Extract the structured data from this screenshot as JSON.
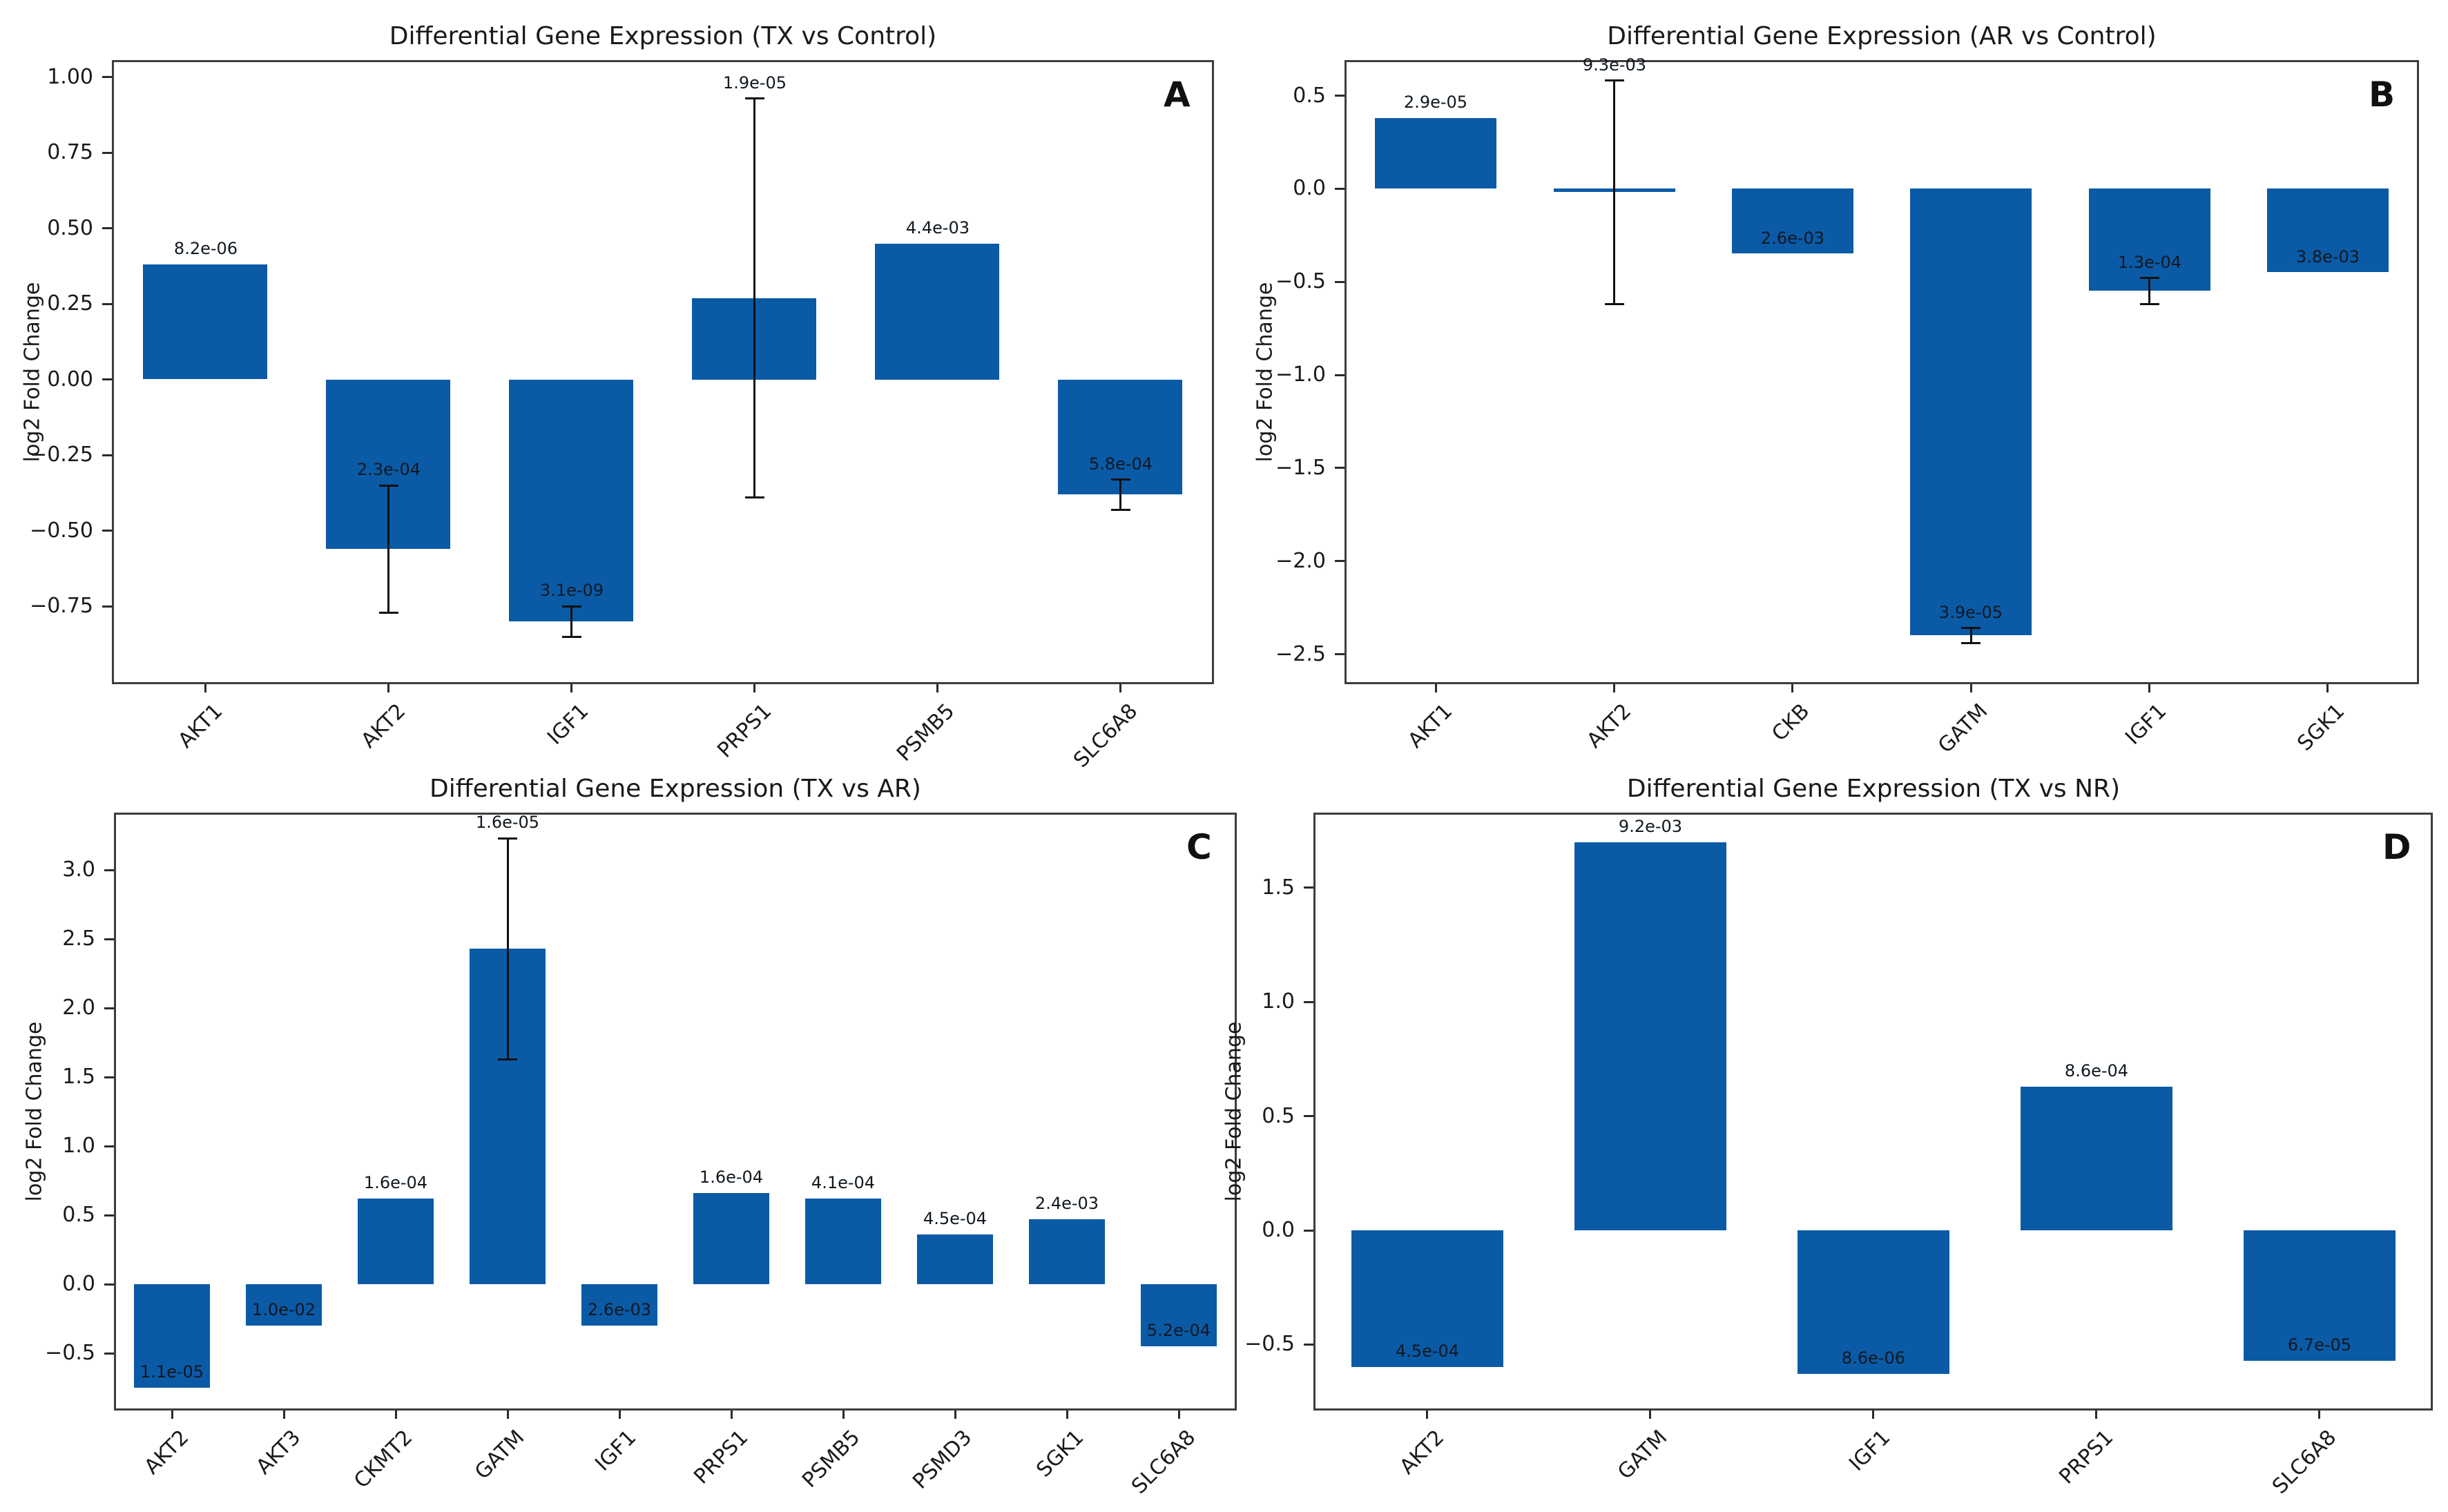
{
  "figure_title": "Differential Gene Expression panels",
  "colors": {
    "bar": "#0b5aa6",
    "spine": "#3d3d3d",
    "text": "#1a1a1a",
    "annotation": "#101820",
    "background": "#ffffff"
  },
  "chart_data": [
    {
      "type": "bar",
      "panel_label": "A",
      "title": "Differential Gene Expression (TX vs Control)",
      "xlabel": "",
      "ylabel": "log2 Fold Change",
      "ylim": [
        -1.0,
        1.05
      ],
      "yticks": [
        1.0,
        0.75,
        0.5,
        0.25,
        0.0,
        -0.25,
        -0.5,
        -0.75
      ],
      "grid": false,
      "legend": null,
      "categories": [
        "AKT1",
        "AKT2",
        "IGF1",
        "PRPS1",
        "PSMB5",
        "SLC6A8"
      ],
      "values": [
        0.38,
        -0.56,
        -0.8,
        0.27,
        0.45,
        -0.38
      ],
      "errors": [
        0,
        0.21,
        0.05,
        0.66,
        0,
        0.05
      ],
      "pvalue_labels": [
        "8.2e-06",
        "2.3e-04",
        "3.1e-09",
        "1.9e-05",
        "4.4e-03",
        "5.8e-04"
      ]
    },
    {
      "type": "bar",
      "panel_label": "B",
      "title": "Differential Gene Expression (AR vs Control)",
      "xlabel": "",
      "ylabel": "log2 Fold Change",
      "ylim": [
        -2.65,
        0.68
      ],
      "yticks": [
        0.5,
        0.0,
        -0.5,
        -1.0,
        -1.5,
        -2.0,
        -2.5
      ],
      "grid": false,
      "legend": null,
      "categories": [
        "AKT1",
        "AKT2",
        "CKB",
        "GATM",
        "IGF1",
        "SGK1"
      ],
      "values": [
        0.38,
        -0.02,
        -0.35,
        -2.4,
        -0.55,
        -0.45
      ],
      "errors": [
        0,
        0.6,
        0,
        0.04,
        0.07,
        0
      ],
      "pvalue_labels": [
        "2.9e-05",
        "9.3e-03",
        "2.6e-03",
        "3.9e-05",
        "1.3e-04",
        "3.8e-03"
      ]
    },
    {
      "type": "bar",
      "panel_label": "C",
      "title": "Differential Gene Expression (TX vs AR)",
      "xlabel": "",
      "ylabel": "log2 Fold Change",
      "ylim": [
        -0.9,
        3.4
      ],
      "yticks": [
        3.0,
        2.5,
        2.0,
        1.5,
        1.0,
        0.5,
        0.0,
        -0.5
      ],
      "grid": false,
      "legend": null,
      "categories": [
        "AKT2",
        "AKT3",
        "CKMT2",
        "GATM",
        "IGF1",
        "PRPS1",
        "PSMB5",
        "PSMD3",
        "SGK1",
        "SLC6A8"
      ],
      "values": [
        -0.75,
        -0.3,
        0.62,
        2.43,
        -0.3,
        0.66,
        0.62,
        0.36,
        0.47,
        -0.45
      ],
      "errors": [
        0,
        0,
        0,
        0.8,
        0,
        0,
        0,
        0,
        0,
        0
      ],
      "pvalue_labels": [
        "1.1e-05",
        "1.0e-02",
        "1.6e-04",
        "1.6e-05",
        "2.6e-03",
        "1.6e-04",
        "4.1e-04",
        "4.5e-04",
        "2.4e-03",
        "5.2e-04"
      ]
    },
    {
      "type": "bar",
      "panel_label": "D",
      "title": "Differential Gene Expression (TX vs NR)",
      "xlabel": "",
      "ylabel": "log2 Fold Change",
      "ylim": [
        -0.78,
        1.82
      ],
      "yticks": [
        1.5,
        1.0,
        0.5,
        0.0,
        -0.5
      ],
      "grid": false,
      "legend": null,
      "categories": [
        "AKT2",
        "GATM",
        "IGF1",
        "PRPS1",
        "SLC6A8"
      ],
      "values": [
        -0.6,
        1.7,
        -0.63,
        0.63,
        -0.57
      ],
      "errors": [
        0,
        0,
        0,
        0,
        0
      ],
      "pvalue_labels": [
        "4.5e-04",
        "9.2e-03",
        "8.6e-06",
        "8.6e-04",
        "6.7e-05"
      ]
    }
  ]
}
